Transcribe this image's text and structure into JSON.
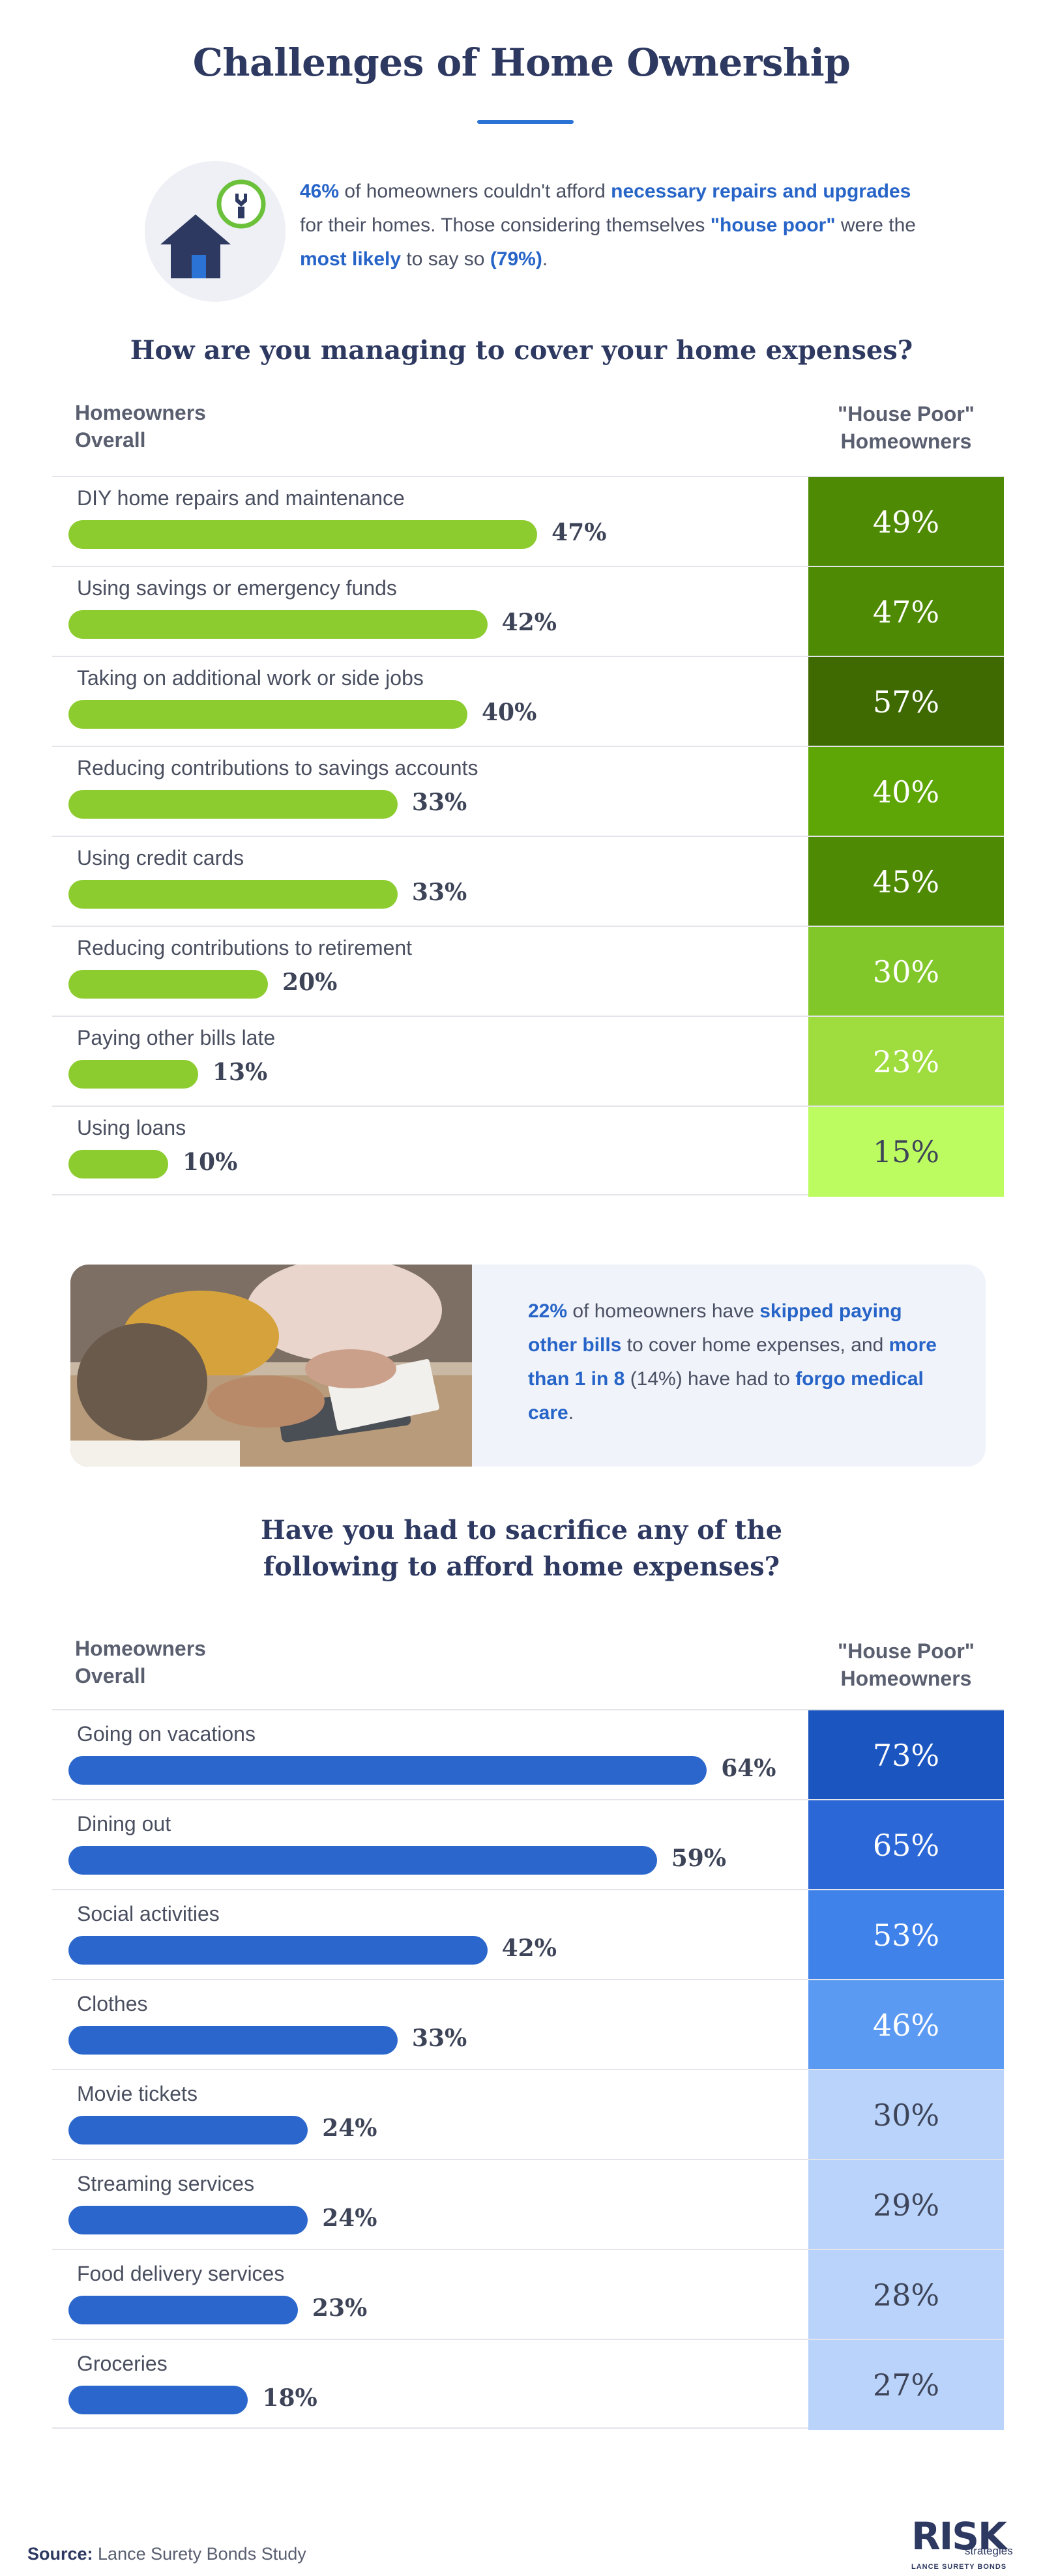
{
  "title": "Challenges of Home Ownership",
  "intro": {
    "icon": "house-wrench-icon",
    "pct": "46%",
    "t1": " of homeowners couldn't afford ",
    "hl1": "necessary repairs and upgrades",
    "t2": " for their homes. Those considering themselves ",
    "hl2": "\"house poor\"",
    "t3": " were the ",
    "hl3": "most likely",
    "t4": " to say so ",
    "hl4": "(79%)",
    "t5": "."
  },
  "section1": {
    "question": "How are you managing to cover your home expenses?",
    "left_header": "Homeowners Overall",
    "right_header": "\"House Poor\" Homeowners"
  },
  "callout": {
    "photo": "calculator-photo",
    "pct": "22%",
    "t1": " of homeowners have ",
    "hl1": "skipped paying other bills",
    "t2": " to cover home expenses, and ",
    "hl2": "more than 1 in 8",
    "t3": " (14%) have had to ",
    "hl3": "forgo medical care",
    "t4": "."
  },
  "section2": {
    "question_line1": "Have you had to sacrifice any of the",
    "question_line2": "following to afford home expenses?",
    "left_header": "Homeowners Overall",
    "right_header": "\"House Poor\" Homeowners"
  },
  "footer": {
    "source_label": "Source:",
    "source_text": " Lance Surety Bonds Study",
    "logo_main": "RISK",
    "logo_sub": "strategies",
    "logo_foot": "LANCE SURETY BONDS"
  },
  "colors": {
    "title": "#2e3961",
    "accent_blue": "#2b74d6",
    "bar_green": "#8ccc2f",
    "bar_blue": "#2a66cc"
  },
  "chart_data": [
    {
      "type": "bar",
      "title": "How are you managing to cover your home expenses?",
      "categories": [
        "DIY home repairs and maintenance",
        "Using savings or emergency funds",
        "Taking on additional work or side jobs",
        "Reducing contributions to savings accounts",
        "Using credit cards",
        "Reducing contributions to retirement",
        "Paying other bills late",
        "Using loans"
      ],
      "series": [
        {
          "name": "Homeowners Overall",
          "values": [
            47,
            42,
            40,
            33,
            33,
            20,
            13,
            10
          ],
          "color": "#8ccc2f"
        },
        {
          "name": "\"House Poor\" Homeowners",
          "values": [
            49,
            47,
            57,
            40,
            45,
            30,
            23,
            15
          ],
          "color": "#4e8a04"
        }
      ],
      "unit": "%"
    },
    {
      "type": "bar",
      "title": "Have you had to sacrifice any of the following to afford home expenses?",
      "categories": [
        "Going on vacations",
        "Dining out",
        "Social activities",
        "Clothes",
        "Movie tickets",
        "Streaming services",
        "Food delivery services",
        "Groceries"
      ],
      "series": [
        {
          "name": "Homeowners Overall",
          "values": [
            64,
            59,
            42,
            33,
            24,
            24,
            23,
            18
          ],
          "color": "#2a66cc"
        },
        {
          "name": "\"House Poor\" Homeowners",
          "values": [
            73,
            65,
            53,
            46,
            30,
            29,
            28,
            27
          ],
          "color": "#2b5fc4"
        }
      ],
      "unit": "%"
    }
  ]
}
